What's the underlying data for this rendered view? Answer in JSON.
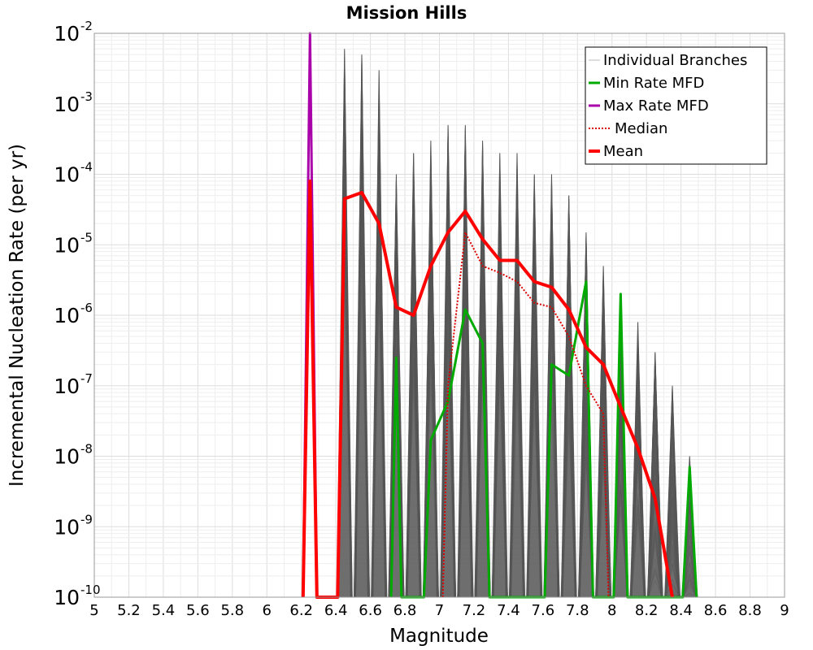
{
  "chart_data": {
    "type": "line",
    "title": "Mission Hills",
    "xlabel": "Magnitude",
    "ylabel": "Incremental Nucleation Rate (per yr)",
    "xlim": [
      5,
      9
    ],
    "ylim": [
      1e-10,
      0.01
    ],
    "y_scale": "log",
    "grid": true,
    "legend_position": "top-right",
    "x_ticks": [
      "5",
      "5.2",
      "5.4",
      "5.6",
      "5.8",
      "6",
      "6.2",
      "6.4",
      "6.6",
      "6.8",
      "7",
      "7.2",
      "7.4",
      "7.6",
      "7.8",
      "8",
      "8.2",
      "8.4",
      "8.6",
      "8.8",
      "9"
    ],
    "y_ticks": [
      {
        "base": "10",
        "exp": "-10",
        "value": 1e-10
      },
      {
        "base": "10",
        "exp": "-9",
        "value": 1e-09
      },
      {
        "base": "10",
        "exp": "-8",
        "value": 1e-08
      },
      {
        "base": "10",
        "exp": "-7",
        "value": 1e-07
      },
      {
        "base": "10",
        "exp": "-6",
        "value": 1e-06
      },
      {
        "base": "10",
        "exp": "-5",
        "value": 1e-05
      },
      {
        "base": "10",
        "exp": "-4",
        "value": 0.0001
      },
      {
        "base": "10",
        "exp": "-3",
        "value": 0.001
      },
      {
        "base": "10",
        "exp": "-2",
        "value": 0.01
      }
    ],
    "series": [
      {
        "name": "Individual Branches",
        "color": "#555555",
        "style": "thin-gray-band",
        "peaks": [
          {
            "x": 6.45,
            "y": 0.006
          },
          {
            "x": 6.55,
            "y": 0.005
          },
          {
            "x": 6.65,
            "y": 0.003
          },
          {
            "x": 6.75,
            "y": 0.0001
          },
          {
            "x": 6.85,
            "y": 0.0002
          },
          {
            "x": 6.95,
            "y": 0.0003
          },
          {
            "x": 7.05,
            "y": 0.0005
          },
          {
            "x": 7.15,
            "y": 0.0005
          },
          {
            "x": 7.25,
            "y": 0.0003
          },
          {
            "x": 7.35,
            "y": 0.0002
          },
          {
            "x": 7.45,
            "y": 0.0002
          },
          {
            "x": 7.55,
            "y": 0.0001
          },
          {
            "x": 7.65,
            "y": 0.0001
          },
          {
            "x": 7.75,
            "y": 5e-05
          },
          {
            "x": 7.85,
            "y": 1.5e-05
          },
          {
            "x": 7.95,
            "y": 5e-06
          },
          {
            "x": 8.05,
            "y": 2e-06
          },
          {
            "x": 8.15,
            "y": 8e-07
          },
          {
            "x": 8.25,
            "y": 3e-07
          },
          {
            "x": 8.35,
            "y": 1e-07
          },
          {
            "x": 8.45,
            "y": 1e-08
          }
        ]
      },
      {
        "name": "Min Rate MFD",
        "color": "#00aa00",
        "style": "solid",
        "points": [
          {
            "x": 6.72,
            "y": 1e-10
          },
          {
            "x": 6.75,
            "y": 2.5e-07
          },
          {
            "x": 6.78,
            "y": 1e-10
          },
          {
            "x": 6.91,
            "y": 1e-10
          },
          {
            "x": 6.95,
            "y": 1.7e-08
          },
          {
            "x": 7.05,
            "y": 6e-08
          },
          {
            "x": 7.15,
            "y": 1.2e-06
          },
          {
            "x": 7.25,
            "y": 4e-07
          },
          {
            "x": 7.29,
            "y": 1e-10
          },
          {
            "x": 7.61,
            "y": 1e-10
          },
          {
            "x": 7.65,
            "y": 2e-07
          },
          {
            "x": 7.75,
            "y": 1.4e-07
          },
          {
            "x": 7.85,
            "y": 3e-06
          },
          {
            "x": 7.89,
            "y": 1e-10
          },
          {
            "x": 8.01,
            "y": 1e-10
          },
          {
            "x": 8.05,
            "y": 2e-06
          },
          {
            "x": 8.09,
            "y": 1e-10
          },
          {
            "x": 8.41,
            "y": 1e-10
          },
          {
            "x": 8.45,
            "y": 7e-09
          },
          {
            "x": 8.49,
            "y": 1e-10
          }
        ]
      },
      {
        "name": "Max Rate MFD",
        "color": "#aa00aa",
        "style": "solid",
        "points": [
          {
            "x": 6.21,
            "y": 1e-10
          },
          {
            "x": 6.25,
            "y": 0.01
          },
          {
            "x": 6.29,
            "y": 1e-10
          }
        ]
      },
      {
        "name": "Median",
        "color": "#dd0000",
        "style": "dotted",
        "points": [
          {
            "x": 7.02,
            "y": 1e-10
          },
          {
            "x": 7.05,
            "y": 1e-07
          },
          {
            "x": 7.15,
            "y": 1.5e-05
          },
          {
            "x": 7.25,
            "y": 5e-06
          },
          {
            "x": 7.35,
            "y": 4e-06
          },
          {
            "x": 7.45,
            "y": 3e-06
          },
          {
            "x": 7.55,
            "y": 1.5e-06
          },
          {
            "x": 7.65,
            "y": 1.3e-06
          },
          {
            "x": 7.75,
            "y": 5e-07
          },
          {
            "x": 7.85,
            "y": 1e-07
          },
          {
            "x": 7.95,
            "y": 4e-08
          },
          {
            "x": 7.98,
            "y": 1e-10
          }
        ]
      },
      {
        "name": "Mean",
        "color": "#ff0000",
        "style": "solid-thick",
        "points": [
          {
            "x": 6.21,
            "y": 1e-10
          },
          {
            "x": 6.25,
            "y": 8e-05
          },
          {
            "x": 6.29,
            "y": 1e-10
          },
          {
            "x": 6.41,
            "y": 1e-10
          },
          {
            "x": 6.45,
            "y": 4.5e-05
          },
          {
            "x": 6.55,
            "y": 5.5e-05
          },
          {
            "x": 6.65,
            "y": 2e-05
          },
          {
            "x": 6.75,
            "y": 1.3e-06
          },
          {
            "x": 6.85,
            "y": 1e-06
          },
          {
            "x": 6.95,
            "y": 5e-06
          },
          {
            "x": 7.05,
            "y": 1.5e-05
          },
          {
            "x": 7.15,
            "y": 3e-05
          },
          {
            "x": 7.25,
            "y": 1.2e-05
          },
          {
            "x": 7.35,
            "y": 6e-06
          },
          {
            "x": 7.45,
            "y": 6e-06
          },
          {
            "x": 7.55,
            "y": 3e-06
          },
          {
            "x": 7.65,
            "y": 2.5e-06
          },
          {
            "x": 7.75,
            "y": 1.2e-06
          },
          {
            "x": 7.85,
            "y": 3.5e-07
          },
          {
            "x": 7.95,
            "y": 2e-07
          },
          {
            "x": 8.05,
            "y": 5e-08
          },
          {
            "x": 8.15,
            "y": 1.3e-08
          },
          {
            "x": 8.25,
            "y": 2.5e-09
          },
          {
            "x": 8.35,
            "y": 1e-10
          }
        ]
      }
    ]
  }
}
